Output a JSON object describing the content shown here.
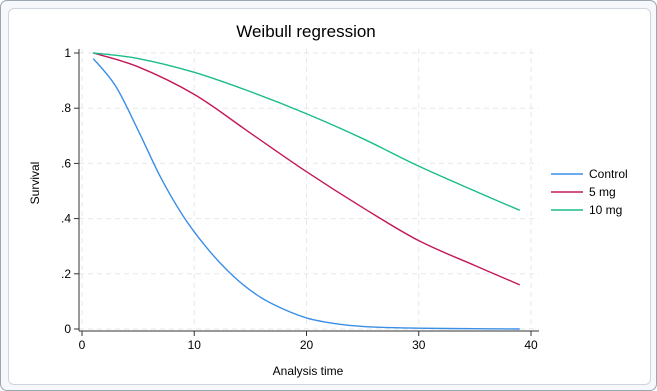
{
  "chart_data": {
    "type": "line",
    "title": "Weibull regression",
    "xlabel": "Analysis time",
    "ylabel": "Survival",
    "xlim": [
      0,
      40
    ],
    "ylim": [
      0,
      1
    ],
    "xticks": [
      0,
      10,
      20,
      30,
      40
    ],
    "xtick_labels": [
      "0",
      "10",
      "20",
      "30",
      "40"
    ],
    "yticks": [
      0,
      0.2,
      0.4,
      0.6,
      0.8,
      1
    ],
    "ytick_labels": [
      "0",
      ".2",
      ".4",
      ".6",
      ".8",
      "1"
    ],
    "grid": true,
    "legend_position": "right",
    "series": [
      {
        "name": "Control",
        "color": "#3a8ee6",
        "x": [
          1,
          3,
          5,
          7,
          9,
          11,
          13,
          15,
          17,
          20,
          23,
          26,
          30,
          35,
          39
        ],
        "y": [
          0.98,
          0.88,
          0.72,
          0.55,
          0.41,
          0.3,
          0.21,
          0.14,
          0.09,
          0.04,
          0.017,
          0.007,
          0.003,
          0.001,
          0.0
        ]
      },
      {
        "name": "5 mg",
        "color": "#c2185b",
        "x": [
          1,
          5,
          10,
          15,
          20,
          25,
          30,
          35,
          39
        ],
        "y": [
          1.0,
          0.95,
          0.85,
          0.71,
          0.57,
          0.44,
          0.32,
          0.23,
          0.16
        ]
      },
      {
        "name": "10 mg",
        "color": "#1abc8c",
        "x": [
          1,
          5,
          10,
          15,
          20,
          25,
          30,
          35,
          39
        ],
        "y": [
          1.0,
          0.98,
          0.93,
          0.86,
          0.78,
          0.69,
          0.59,
          0.5,
          0.43
        ]
      }
    ]
  }
}
